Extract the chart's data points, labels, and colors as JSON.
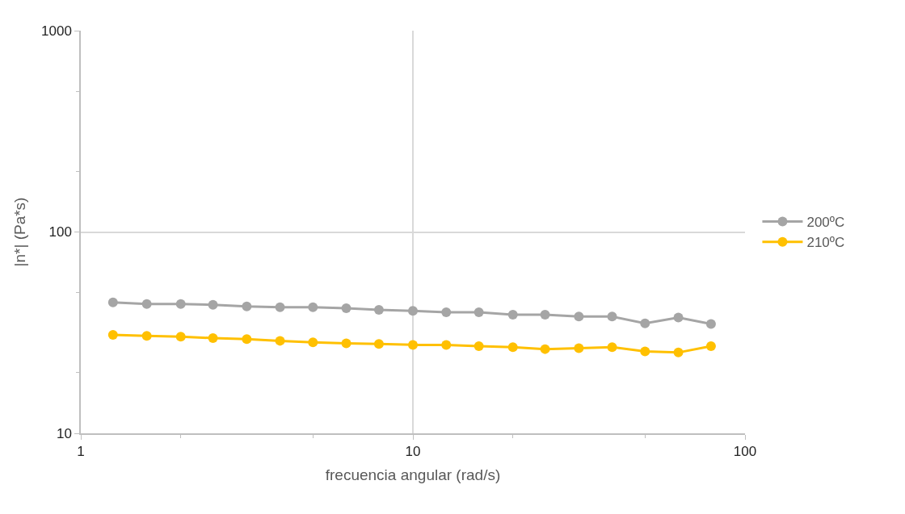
{
  "chart_data": {
    "type": "line",
    "xlabel": "frecuencia angular (rad/s)",
    "ylabel": "|n*| (Pa*s)",
    "x": [
      1.25,
      1.58,
      2,
      2.5,
      3.16,
      3.98,
      5,
      6.3,
      7.9,
      10,
      12.6,
      15.8,
      20,
      25,
      31.6,
      39.8,
      50,
      63,
      79
    ],
    "series": [
      {
        "name": "200ºC",
        "color": "#a5a5a5",
        "values": [
          44.7,
          43.9,
          43.9,
          43.5,
          42.7,
          42.3,
          42.3,
          41.8,
          41.0,
          40.6,
          39.9,
          39.9,
          38.8,
          38.8,
          38.0,
          38.0,
          35.2,
          37.6,
          34.9
        ]
      },
      {
        "name": "210ºC",
        "color": "#ffc000",
        "values": [
          30.8,
          30.5,
          30.2,
          29.7,
          29.4,
          28.8,
          28.3,
          28.0,
          27.8,
          27.5,
          27.5,
          27.1,
          26.8,
          26.2,
          26.5,
          26.8,
          25.5,
          25.2,
          27.1
        ]
      }
    ],
    "log": "xy",
    "xlim": [
      1,
      100
    ],
    "xticks": [
      1,
      10,
      100
    ],
    "ylim": [
      10,
      1000
    ],
    "yticks": [
      10,
      100,
      1000
    ],
    "grid": true,
    "legend": "right",
    "marker": "circle",
    "line_style": "solid"
  }
}
